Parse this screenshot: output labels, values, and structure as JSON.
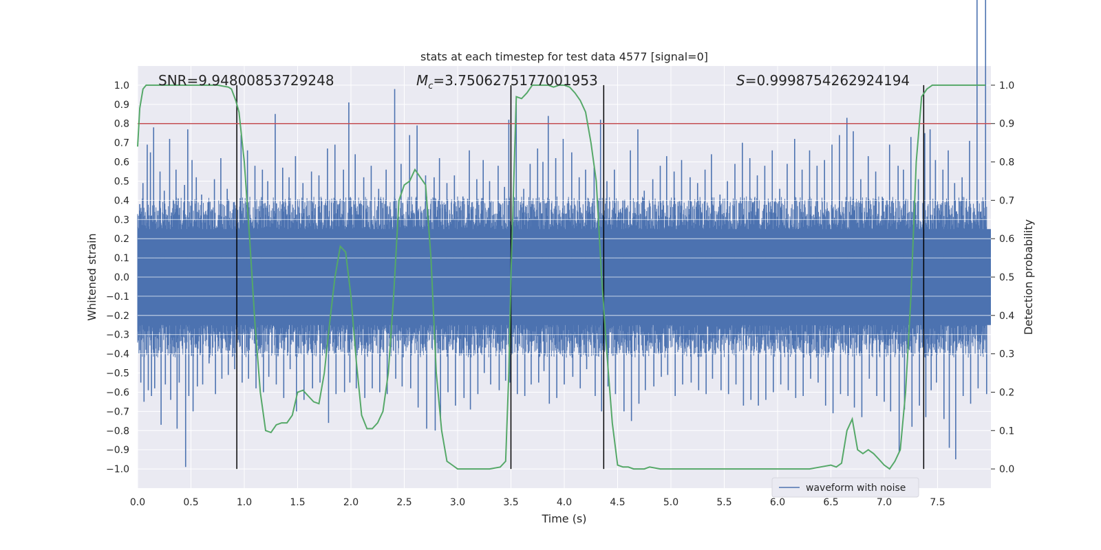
{
  "chart_data": {
    "type": "line",
    "title": "stats at each timestep for test data 4577 [signal=0]",
    "xlabel": "Time (s)",
    "ylabel": "Whitened strain",
    "y2label": "Detection probability",
    "xlim": [
      0.0,
      8.0
    ],
    "ylim": [
      -1.1,
      1.1
    ],
    "y2lim": [
      -0.05,
      1.05
    ],
    "x_ticks": [
      "0.0",
      "0.5",
      "1.0",
      "1.5",
      "2.0",
      "2.5",
      "3.0",
      "3.5",
      "4.0",
      "4.5",
      "5.0",
      "5.5",
      "6.0",
      "6.5",
      "7.0",
      "7.5"
    ],
    "y_ticks": [
      "1.0",
      "0.9",
      "0.8",
      "0.7",
      "0.6",
      "0.5",
      "0.4",
      "0.3",
      "0.2",
      "0.1",
      "0.0",
      "−0.1",
      "−0.2",
      "−0.3",
      "−0.4",
      "−0.5",
      "−0.6",
      "−0.7",
      "−0.8",
      "−0.9",
      "−1.0"
    ],
    "y2_ticks": [
      "1.0",
      "0.9",
      "0.8",
      "0.7",
      "0.6",
      "0.5",
      "0.4",
      "0.3",
      "0.2",
      "0.1",
      "0.0"
    ],
    "grid": true,
    "legend_placement": "lower-right",
    "annotations": {
      "snr": "SNR=9.94800853729248",
      "mc_symbol": "M",
      "mc_subscript": "c",
      "mc_value": "=3.7506275177001953",
      "s_symbol": "S",
      "s_value": "=0.9998754262924194"
    },
    "threshold": {
      "value": 0.9,
      "axis": "y2",
      "color": "#c44e52"
    },
    "vertical_lines": [
      0.93,
      3.5,
      4.37,
      7.37
    ],
    "waveform": {
      "name": "waveform with noise",
      "color": "#4c72b0",
      "note_unlisted": "",
      "peaks_x": [
        0.02,
        0.05,
        0.09,
        0.12,
        0.15,
        0.21,
        0.25,
        0.3,
        0.36,
        0.38,
        0.44,
        0.47,
        0.51,
        0.55,
        0.6,
        0.66,
        0.72,
        0.78,
        0.84,
        0.9,
        0.97,
        1.03,
        1.1,
        1.17,
        1.22,
        1.29,
        1.36,
        1.42,
        1.48,
        1.55,
        1.63,
        1.7,
        1.78,
        1.85,
        1.93,
        1.98,
        2.04,
        2.12,
        2.19,
        2.26,
        2.33,
        2.41,
        2.47,
        2.55,
        2.62,
        2.7,
        2.78,
        2.83,
        2.9,
        2.97,
        3.05,
        3.11,
        3.18,
        3.24,
        3.3,
        3.38,
        3.44,
        3.48,
        3.55,
        3.62,
        3.68,
        3.75,
        3.8,
        3.85,
        3.92,
        3.99,
        4.07,
        4.14,
        4.2,
        4.28,
        4.34,
        4.4,
        4.47,
        4.55,
        4.62,
        4.69,
        4.75,
        4.83,
        4.9,
        4.96,
        5.03,
        5.1,
        5.18,
        5.25,
        5.32,
        5.38,
        5.46,
        5.53,
        5.6,
        5.67,
        5.74,
        5.81,
        5.88,
        5.95,
        6.02,
        6.09,
        6.16,
        6.23,
        6.3,
        6.37,
        6.44,
        6.51,
        6.58,
        6.65,
        6.71,
        6.78,
        6.85,
        6.92,
        6.99,
        7.05,
        7.13,
        7.18,
        7.25,
        7.32,
        7.38,
        7.43,
        7.48,
        7.55,
        7.6,
        7.66,
        7.73,
        7.8,
        7.87,
        7.95
      ],
      "peaks_top": [
        0.38,
        0.49,
        0.69,
        0.65,
        0.78,
        0.55,
        0.45,
        0.72,
        0.56,
        0.41,
        0.48,
        0.77,
        0.61,
        0.52,
        0.43,
        0.39,
        0.51,
        0.62,
        0.46,
        0.39,
        0.74,
        0.66,
        0.58,
        0.56,
        0.5,
        0.85,
        0.57,
        0.52,
        0.63,
        0.49,
        0.55,
        0.53,
        0.67,
        0.69,
        0.56,
        0.91,
        0.64,
        0.52,
        0.58,
        0.46,
        0.56,
        0.98,
        0.59,
        0.74,
        0.79,
        0.53,
        0.52,
        0.62,
        0.49,
        0.53,
        0.42,
        0.66,
        0.51,
        0.61,
        0.5,
        0.58,
        0.47,
        0.82,
        0.9,
        0.46,
        0.59,
        0.67,
        0.6,
        0.84,
        0.62,
        0.72,
        0.65,
        0.52,
        0.56,
        0.57,
        0.82,
        0.5,
        0.56,
        0.4,
        0.66,
        0.77,
        0.45,
        0.51,
        0.58,
        0.63,
        0.55,
        0.61,
        0.52,
        0.49,
        0.56,
        0.64,
        0.43,
        0.5,
        0.59,
        0.7,
        0.62,
        0.53,
        0.58,
        0.66,
        0.46,
        0.59,
        0.72,
        0.56,
        0.66,
        0.58,
        0.61,
        0.69,
        0.74,
        0.83,
        0.76,
        0.51,
        0.63,
        0.55,
        0.41,
        0.69,
        0.58,
        0.56,
        0.73,
        0.51,
        0.75,
        0.77,
        0.61,
        0.56,
        0.66,
        0.49,
        0.52,
        0.71
      ],
      "peaks_bottom": [
        -0.55,
        -0.65,
        -0.59,
        -0.62,
        -0.58,
        -0.77,
        -0.56,
        -0.64,
        -0.79,
        -0.55,
        -0.99,
        -0.62,
        -0.7,
        -0.57,
        -0.56,
        -0.45,
        -0.61,
        -0.53,
        -0.51,
        -0.48,
        -0.55,
        -0.53,
        -0.58,
        -0.6,
        -0.52,
        -0.56,
        -0.63,
        -0.48,
        -0.7,
        -0.64,
        -0.58,
        -0.55,
        -0.76,
        -0.61,
        -0.6,
        -0.55,
        -0.58,
        -0.63,
        -0.58,
        -0.6,
        -0.61,
        -0.53,
        -0.57,
        -0.58,
        -0.68,
        -0.79,
        -0.8,
        -0.75,
        -0.6,
        -0.67,
        -0.63,
        -0.69,
        -0.61,
        -0.5,
        -0.56,
        -0.59,
        -0.54,
        -0.55,
        -0.61,
        -0.62,
        -0.56,
        -0.55,
        -0.49,
        -0.66,
        -0.63,
        -0.56,
        -0.52,
        -0.58,
        -0.48,
        -0.62,
        -0.7,
        -0.57,
        -0.61,
        -0.7,
        -0.75,
        -0.66,
        -0.59,
        -0.57,
        -0.52,
        -0.51,
        -0.62,
        -0.56,
        -0.55,
        -0.59,
        -0.61,
        -0.53,
        -0.59,
        -0.61,
        -0.56,
        -0.67,
        -0.64,
        -0.67,
        -0.64,
        -0.6,
        -0.56,
        -0.59,
        -0.63,
        -0.62,
        -0.53,
        -0.55,
        -0.67,
        -0.71,
        -0.61,
        -0.62,
        -0.68,
        -0.73,
        -0.53,
        -0.62,
        -0.65,
        -0.7,
        -0.91,
        -0.69,
        -0.78,
        -0.67,
        -0.73,
        -0.59,
        -0.55,
        -0.74,
        -0.89,
        -0.95,
        -0.62,
        -0.66,
        -0.58,
        -0.61
      ]
    },
    "probability": {
      "color": "#55a868",
      "x": [
        0.0,
        0.02,
        0.05,
        0.08,
        0.12,
        0.2,
        0.4,
        0.6,
        0.75,
        0.85,
        0.88,
        0.92,
        0.95,
        1.0,
        1.05,
        1.1,
        1.15,
        1.2,
        1.25,
        1.3,
        1.35,
        1.4,
        1.45,
        1.5,
        1.55,
        1.6,
        1.65,
        1.7,
        1.75,
        1.8,
        1.85,
        1.9,
        1.95,
        2.0,
        2.05,
        2.1,
        2.15,
        2.2,
        2.25,
        2.3,
        2.35,
        2.4,
        2.45,
        2.5,
        2.55,
        2.6,
        2.65,
        2.7,
        2.75,
        2.8,
        2.85,
        2.9,
        2.95,
        3.0,
        3.05,
        3.1,
        3.2,
        3.3,
        3.4,
        3.45,
        3.48,
        3.5,
        3.55,
        3.6,
        3.65,
        3.7,
        3.75,
        3.8,
        3.85,
        3.9,
        3.95,
        4.0,
        4.05,
        4.1,
        4.15,
        4.2,
        4.25,
        4.3,
        4.35,
        4.4,
        4.45,
        4.5,
        4.55,
        4.6,
        4.65,
        4.7,
        4.75,
        4.8,
        4.9,
        5.0,
        5.1,
        5.2,
        5.3,
        5.5,
        5.7,
        5.9,
        6.1,
        6.3,
        6.4,
        6.5,
        6.55,
        6.6,
        6.65,
        6.7,
        6.75,
        6.8,
        6.85,
        6.9,
        6.95,
        7.0,
        7.05,
        7.1,
        7.15,
        7.2,
        7.25,
        7.3,
        7.35,
        7.4,
        7.45,
        7.5,
        7.6,
        7.8,
        7.95
      ],
      "y": [
        0.84,
        0.94,
        0.99,
        1.0,
        1.0,
        1.0,
        1.0,
        1.0,
        1.0,
        0.995,
        0.99,
        0.96,
        0.93,
        0.8,
        0.6,
        0.38,
        0.2,
        0.1,
        0.095,
        0.115,
        0.12,
        0.12,
        0.14,
        0.2,
        0.205,
        0.19,
        0.175,
        0.17,
        0.25,
        0.38,
        0.5,
        0.58,
        0.565,
        0.45,
        0.28,
        0.14,
        0.105,
        0.105,
        0.12,
        0.15,
        0.25,
        0.45,
        0.7,
        0.74,
        0.75,
        0.78,
        0.76,
        0.74,
        0.55,
        0.25,
        0.1,
        0.02,
        0.01,
        0.0,
        0.0,
        0.0,
        0.0,
        0.0,
        0.005,
        0.02,
        0.25,
        0.5,
        0.97,
        0.965,
        0.98,
        1.0,
        1.0,
        1.0,
        1.0,
        0.995,
        1.0,
        1.0,
        0.995,
        0.98,
        0.96,
        0.93,
        0.85,
        0.75,
        0.5,
        0.3,
        0.12,
        0.01,
        0.005,
        0.005,
        0.0,
        0.0,
        0.0,
        0.005,
        0.0,
        0.0,
        0.0,
        0.0,
        0.0,
        0.0,
        0.0,
        0.0,
        0.0,
        0.0,
        0.005,
        0.01,
        0.005,
        0.015,
        0.1,
        0.13,
        0.05,
        0.04,
        0.05,
        0.04,
        0.025,
        0.01,
        0.0,
        0.02,
        0.05,
        0.2,
        0.45,
        0.8,
        0.97,
        0.99,
        1.0,
        1.0,
        1.0,
        1.0,
        1.0
      ]
    }
  }
}
